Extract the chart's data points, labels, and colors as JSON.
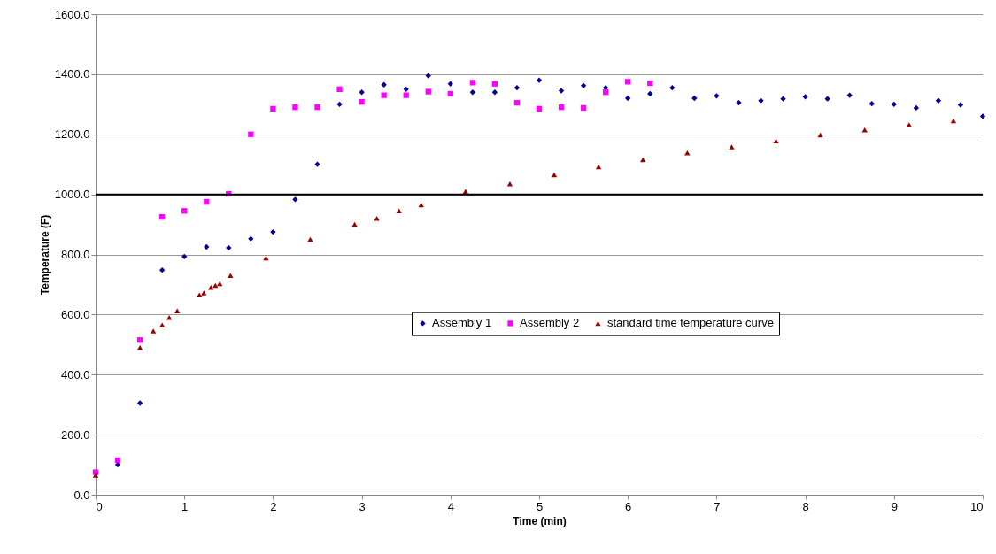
{
  "chart_data": {
    "type": "scatter",
    "xlabel": "Time (min)",
    "ylabel": "Temperature (F)",
    "xlim": [
      0,
      10
    ],
    "xticks": [
      0,
      1,
      2,
      3,
      4,
      5,
      6,
      7,
      8,
      9,
      10
    ],
    "ylim": [
      0,
      1600
    ],
    "yticks": [
      {
        "value": 0,
        "label": "0.0"
      },
      {
        "value": 200,
        "label": "200.0"
      },
      {
        "value": 400,
        "label": "400.0"
      },
      {
        "value": 600,
        "label": "600.0"
      },
      {
        "value": 800,
        "label": "800.0"
      },
      {
        "value": 1000,
        "label": "1000.0"
      },
      {
        "value": 1200,
        "label": "1200.0"
      },
      {
        "value": 1400,
        "label": "1400.0"
      },
      {
        "value": 1600,
        "label": "1600.0"
      }
    ],
    "grid": "y",
    "legend": "right",
    "ref_lines": [
      {
        "axis": "y",
        "value": 1000,
        "color": "#000000"
      }
    ],
    "series": [
      {
        "name": "Assembly 1",
        "color": "#000099",
        "marker": "diamond",
        "x": [
          0.25,
          0.5,
          0.75,
          1,
          1.25,
          1.5,
          1.75,
          2,
          2.25,
          2.5,
          2.75,
          3,
          3.25,
          3.5,
          3.75,
          4,
          4.25,
          4.5,
          4.75,
          5,
          5.25,
          5.5,
          5.75,
          6,
          6.25,
          6.5,
          6.75,
          7,
          7.25,
          7.5,
          7.75,
          8,
          8.25,
          8.5,
          8.75,
          9,
          9.25,
          9.5,
          9.75,
          10
        ],
        "values": [
          100,
          305,
          748,
          793,
          825,
          822,
          852,
          875,
          983,
          1100,
          1300,
          1340,
          1365,
          1350,
          1395,
          1368,
          1340,
          1340,
          1355,
          1380,
          1345,
          1362,
          1355,
          1320,
          1335,
          1355,
          1320,
          1328,
          1305,
          1312,
          1318,
          1325,
          1318,
          1330,
          1302,
          1300,
          1288,
          1312,
          1298,
          1260
        ]
      },
      {
        "name": "Assembly 2",
        "color": "#ff00ff",
        "marker": "square",
        "x": [
          0,
          0.25,
          0.5,
          0.75,
          1,
          1.25,
          1.5,
          1.75,
          2,
          2.25,
          2.5,
          2.75,
          3,
          3.25,
          3.5,
          3.75,
          4,
          4.25,
          4.5,
          4.75,
          5,
          5.25,
          5.5,
          5.75,
          6,
          6.25
        ],
        "values": [
          75,
          115,
          515,
          925,
          945,
          975,
          1002,
          1200,
          1285,
          1290,
          1290,
          1350,
          1308,
          1330,
          1330,
          1342,
          1335,
          1372,
          1368,
          1305,
          1285,
          1290,
          1288,
          1340,
          1375,
          1370
        ]
      },
      {
        "name": "standard time temperature curve",
        "color": "#990000",
        "marker": "triangle",
        "x": [
          0,
          0.5,
          0.65,
          0.75,
          0.83,
          0.92,
          1.17,
          1.22,
          1.3,
          1.35,
          1.4,
          1.52,
          1.92,
          2.42,
          2.92,
          3.17,
          3.42,
          3.67,
          4.17,
          4.67,
          5.17,
          5.67,
          6.17,
          6.67,
          7.17,
          7.67,
          8.17,
          8.67,
          9.17,
          9.67
        ],
        "values": [
          65,
          490,
          545,
          565,
          590,
          612,
          665,
          672,
          690,
          697,
          703,
          730,
          788,
          850,
          900,
          920,
          945,
          965,
          1010,
          1035,
          1065,
          1092,
          1115,
          1138,
          1158,
          1178,
          1198,
          1215,
          1232,
          1245
        ]
      }
    ]
  }
}
